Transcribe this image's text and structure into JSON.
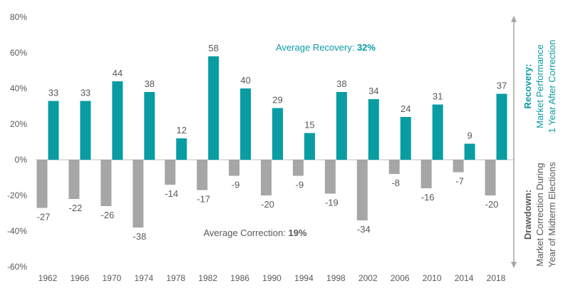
{
  "chart_data": {
    "type": "bar",
    "categories": [
      "1962",
      "1966",
      "1970",
      "1974",
      "1978",
      "1982",
      "1986",
      "1990",
      "1994",
      "1998",
      "2002",
      "2006",
      "2010",
      "2014",
      "2018"
    ],
    "series": [
      {
        "name": "Recovery",
        "values": [
          33,
          33,
          44,
          38,
          12,
          58,
          40,
          29,
          15,
          38,
          34,
          24,
          31,
          9,
          37
        ]
      },
      {
        "name": "Drawdown",
        "values": [
          -27,
          -22,
          -26,
          -38,
          -14,
          -17,
          -9,
          -20,
          -9,
          -19,
          -34,
          -8,
          -16,
          -7,
          -20
        ]
      }
    ],
    "recovery_labels": [
      "33",
      "33",
      "44",
      "38",
      "12",
      "58",
      "40",
      "29",
      "15",
      "38",
      "34",
      "24",
      "31",
      "9",
      "37"
    ],
    "drawdown_labels": [
      "-27",
      "-22",
      "-26",
      "-38",
      "-14",
      "-17",
      "-9",
      "-20",
      "-9",
      "-19",
      "-34",
      "-8",
      "-16",
      "-7",
      "-20"
    ],
    "ylim": [
      -60,
      80
    ],
    "yticks": [
      80,
      60,
      40,
      20,
      0,
      -20,
      -40,
      -60
    ],
    "ytick_labels": [
      "80%",
      "60%",
      "40%",
      "20%",
      "0%",
      "-20%",
      "-40%",
      "-60%"
    ],
    "grid": false,
    "colors": {
      "recovery": "#0a9ca3",
      "drawdown": "#a6a6a6",
      "text": "#595959",
      "axis": "#bfbfbf",
      "arrow": "#a6a6a6"
    },
    "annotations": {
      "avg_recovery_prefix": "Average Recovery: ",
      "avg_recovery_value": "32%",
      "avg_correction_prefix": "Average Correction: ",
      "avg_correction_value": "19%"
    },
    "side_labels": {
      "recovery_title": "Recovery:",
      "recovery_line1": "Market Performance",
      "recovery_line2": "1 Year After Correction",
      "drawdown_title": "Drawdown:",
      "drawdown_line1": "Market Correction During",
      "drawdown_line2": "Year of Midterm Elections"
    }
  }
}
